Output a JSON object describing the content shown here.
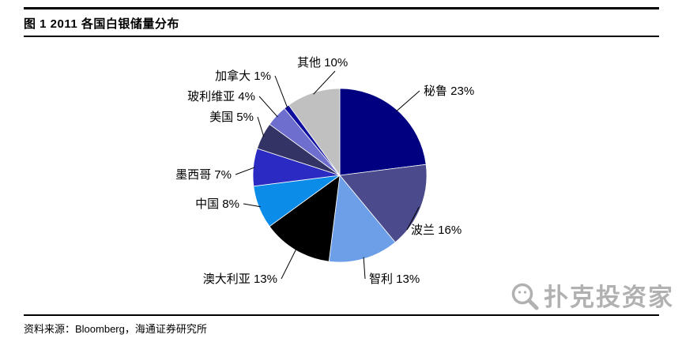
{
  "header": {
    "title": "图 1 2011 各国白银储量分布"
  },
  "footer": {
    "source": "资料来源：Bloomberg，海通证券研究所"
  },
  "watermark": {
    "text": "扑克投资家",
    "icon": "magnifier-icon",
    "color": "#a9a9a9"
  },
  "chart_data": {
    "type": "pie",
    "title": "2011 各国白银储量分布",
    "unit": "%",
    "start_angle_deg": -90,
    "direction": "clockwise",
    "legend_position": "none",
    "label_format": "{name} {value}%",
    "slices": [
      {
        "name": "秘鲁",
        "value": 23,
        "color": "#000080"
      },
      {
        "name": "波兰",
        "value": 16,
        "color": "#4A4A8C"
      },
      {
        "name": "智利",
        "value": 13,
        "color": "#6D9EE8"
      },
      {
        "name": "澳大利亚",
        "value": 13,
        "color": "#000000"
      },
      {
        "name": "中国",
        "value": 8,
        "color": "#0A8CE8"
      },
      {
        "name": "墨西哥",
        "value": 7,
        "color": "#2B2BC4"
      },
      {
        "name": "美国",
        "value": 5,
        "color": "#333366"
      },
      {
        "name": "玻利维亚",
        "value": 4,
        "color": "#6E6ECF"
      },
      {
        "name": "加拿大",
        "value": 1,
        "color": "#0F0FA0"
      },
      {
        "name": "其他",
        "value": 10,
        "color": "#C0C0C0"
      }
    ]
  }
}
